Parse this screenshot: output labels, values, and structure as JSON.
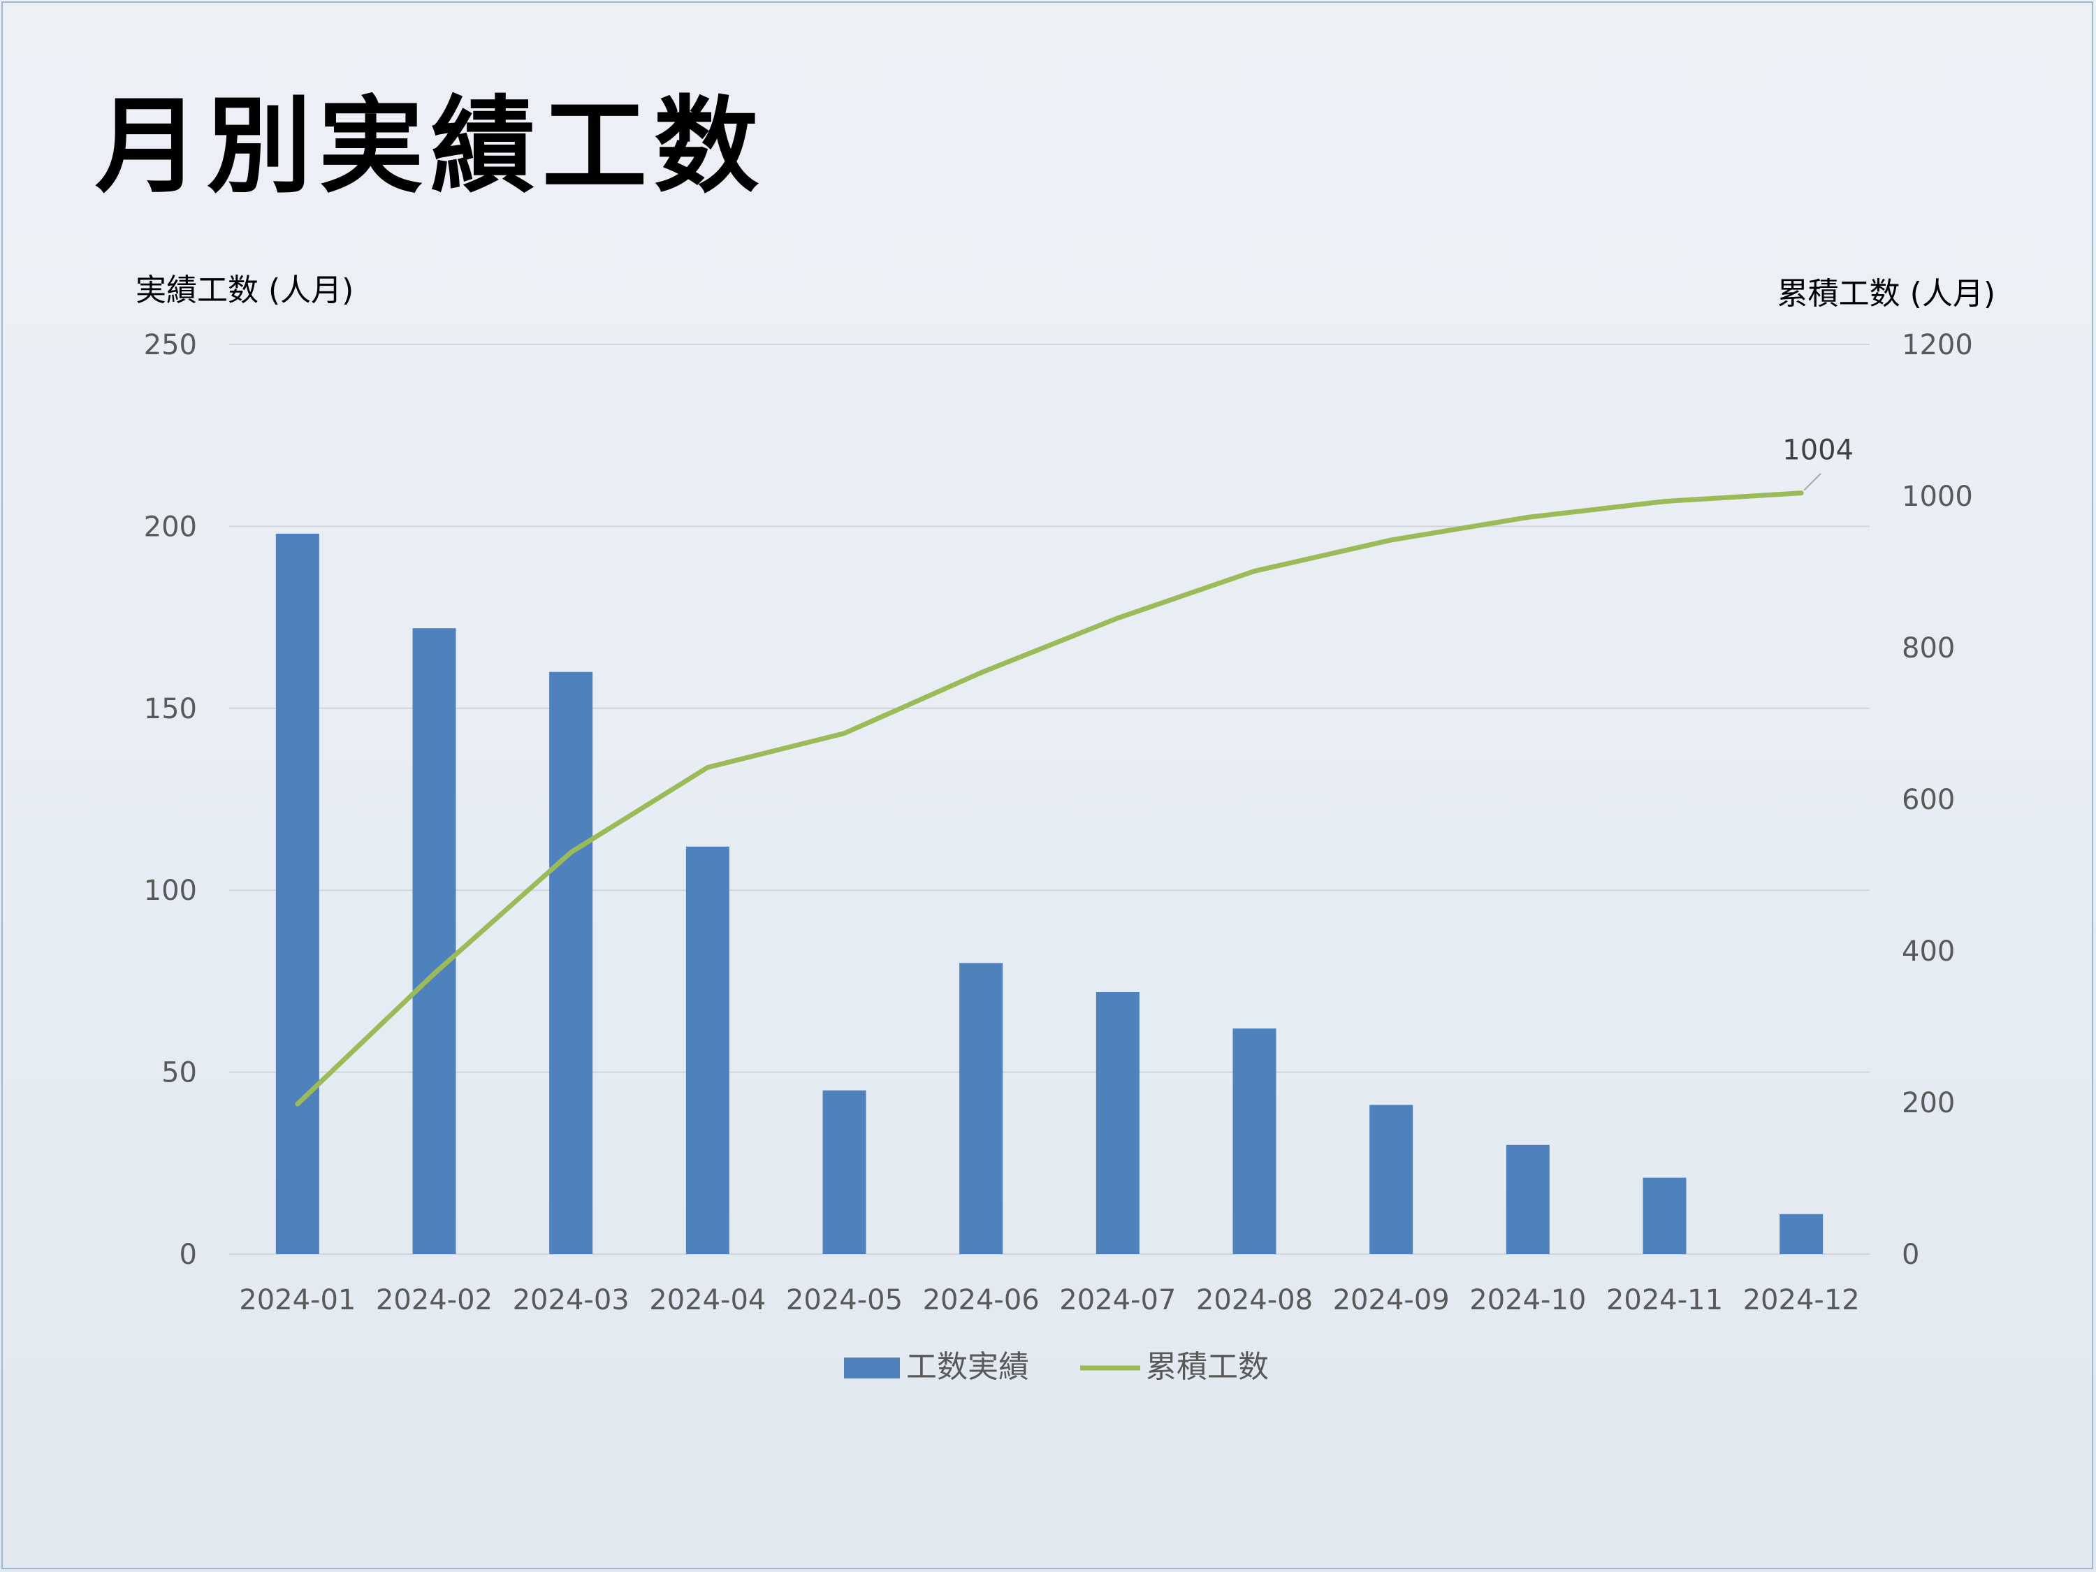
{
  "slide": {
    "title": "月別実績工数"
  },
  "colors": {
    "bar": "#4f81bd",
    "line": "#9bbb59",
    "grid": "#d0d5dc",
    "text": "#595959"
  },
  "chart_data": {
    "type": "bar",
    "title": "",
    "categories": [
      "2024-01",
      "2024-02",
      "2024-03",
      "2024-04",
      "2024-05",
      "2024-06",
      "2024-07",
      "2024-08",
      "2024-09",
      "2024-10",
      "2024-11",
      "2024-12"
    ],
    "series": [
      {
        "name": "工数実績",
        "type": "bar",
        "axis": "left",
        "values": [
          198,
          172,
          160,
          112,
          45,
          80,
          72,
          62,
          41,
          30,
          21,
          11
        ]
      },
      {
        "name": "累積工数",
        "type": "line",
        "axis": "right",
        "values": [
          198,
          370,
          530,
          642,
          687,
          767,
          839,
          901,
          942,
          972,
          993,
          1004
        ]
      }
    ],
    "ylabel": "実績工数 (人月)",
    "y2label": "累積工数 (人月)",
    "ylim": [
      0,
      250
    ],
    "y2lim": [
      0,
      1200
    ],
    "yticks": [
      0,
      50,
      100,
      150,
      200,
      250
    ],
    "y2ticks": [
      0,
      200,
      400,
      600,
      800,
      1000,
      1200
    ],
    "annotations": [
      {
        "series": "累積工数",
        "category": "2024-12",
        "text": "1004"
      }
    ],
    "grid": true,
    "legend": "bottom"
  }
}
